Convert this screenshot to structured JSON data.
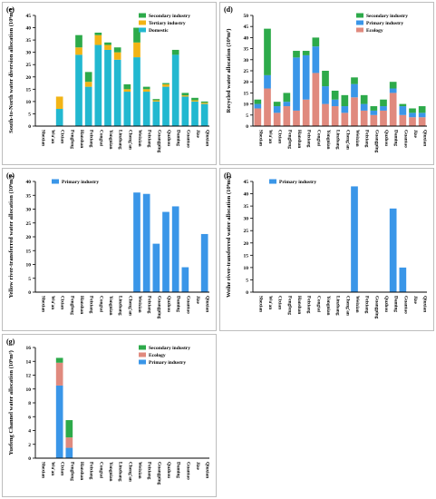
{
  "categories": [
    "Shexian",
    "Wu'an",
    "Cixian",
    "Fengfeng",
    "Hanshan",
    "Feixiang",
    "Congtai",
    "Yongnian",
    "Linzhang",
    "Cheng'an",
    "Weixian",
    "Feixiang",
    "Guangping",
    "Quzhou",
    "Daming",
    "Guantao",
    "Jize",
    "Qiuxian"
  ],
  "colors": {
    "primary": "#3a96e8",
    "secondary": "#2daa4a",
    "tertiary": "#f2b416",
    "domestic": "#22b8d0",
    "ecology": "#e08a7e",
    "frame": "#bdbdbd"
  },
  "chart_data": [
    {
      "panel": "(e)",
      "type": "bar",
      "stacked": true,
      "ylabel": "South-to-North water diversion allocation (10⁸m³)",
      "ylim": [
        0,
        45
      ],
      "yticks": [
        0,
        5,
        10,
        15,
        20,
        25,
        30,
        35,
        40,
        45
      ],
      "legend_position": "top-right",
      "series": [
        {
          "name": "Domestic",
          "color": "#22b8d0",
          "values": [
            0,
            0,
            7,
            0,
            29,
            16,
            33,
            31,
            27,
            14,
            28,
            14,
            10,
            16,
            29,
            12,
            10,
            9
          ]
        },
        {
          "name": "Tertiary industry",
          "color": "#f2b416",
          "values": [
            0,
            0,
            5,
            0,
            3,
            2,
            4,
            2,
            3,
            1,
            6,
            1,
            0.5,
            1,
            0,
            0.5,
            0.5,
            0.5
          ]
        },
        {
          "name": "Secondary industry",
          "color": "#2daa4a",
          "values": [
            0,
            0,
            0,
            0,
            5,
            4,
            1,
            1,
            2,
            2,
            6,
            1,
            0.5,
            0.5,
            2,
            1,
            1,
            0.5
          ]
        }
      ]
    },
    {
      "panel": "(d)",
      "type": "bar",
      "stacked": true,
      "ylabel": "Recycled water allocation (10⁸m³)",
      "ylim": [
        0,
        50
      ],
      "yticks": [
        0,
        5,
        10,
        15,
        20,
        25,
        30,
        35,
        40,
        45,
        50
      ],
      "legend_position": "top-right",
      "series": [
        {
          "name": "Ecology",
          "color": "#e08a7e",
          "values": [
            8,
            17,
            6,
            9,
            7,
            12,
            24,
            10,
            9,
            6,
            13,
            7,
            5,
            7,
            15,
            5,
            4,
            4
          ]
        },
        {
          "name": "Primary industry",
          "color": "#3a96e8",
          "values": [
            2,
            6,
            3,
            2,
            24,
            20,
            12,
            8,
            3,
            3,
            6,
            3,
            2,
            2,
            2,
            4,
            2,
            2
          ]
        },
        {
          "name": "Secondary industry",
          "color": "#2daa4a",
          "values": [
            2,
            21,
            2,
            4,
            3,
            2,
            4,
            7,
            4,
            5,
            3,
            4,
            2,
            3,
            3,
            1,
            2,
            3
          ]
        }
      ]
    },
    {
      "panel": "(e)",
      "type": "bar",
      "ylabel": "Yellow river-transferred water allocation (10⁸m³)",
      "ylim": [
        0,
        40
      ],
      "yticks": [
        0,
        5,
        10,
        15,
        20,
        25,
        30,
        35,
        40
      ],
      "legend_position": "top-left",
      "series": [
        {
          "name": "Primary industry",
          "color": "#3a96e8",
          "values": [
            0,
            0,
            0,
            0,
            0,
            0,
            0,
            0,
            0,
            0,
            36,
            35.5,
            17.5,
            29,
            31,
            9,
            0,
            21
          ]
        }
      ]
    },
    {
      "panel": "(f)",
      "type": "bar",
      "ylabel": "Weihe river-transferred water allocation (10⁸m³)",
      "ylim": [
        0,
        45
      ],
      "yticks": [
        0,
        5,
        10,
        15,
        20,
        25,
        30,
        35,
        40,
        45
      ],
      "legend_position": "top-left",
      "series": [
        {
          "name": "Primary industry",
          "color": "#3a96e8",
          "values": [
            0,
            0,
            0,
            0,
            0,
            0,
            0,
            0,
            0,
            0,
            43,
            0,
            0,
            0,
            34,
            10,
            0,
            0
          ]
        }
      ]
    },
    {
      "panel": "(g)",
      "type": "bar",
      "stacked": true,
      "ylabel": "Yuefeng Channel water allocation (10⁸m³)",
      "ylim": [
        0,
        16
      ],
      "yticks": [
        0,
        2,
        4,
        6,
        8,
        10,
        12,
        14,
        16
      ],
      "legend_position": "top-right",
      "series": [
        {
          "name": "Primary industry",
          "color": "#3a96e8",
          "values": [
            0,
            0,
            10.5,
            1.5,
            0,
            0,
            0,
            0,
            0,
            0,
            0,
            0,
            0,
            0,
            0,
            0,
            0,
            0
          ]
        },
        {
          "name": "Ecology",
          "color": "#e08a7e",
          "values": [
            0,
            0,
            3.3,
            1.5,
            0,
            0,
            0,
            0,
            0,
            0,
            0,
            0,
            0,
            0,
            0,
            0,
            0,
            0
          ]
        },
        {
          "name": "Secondary industry",
          "color": "#2daa4a",
          "values": [
            0,
            0,
            0.7,
            2.5,
            0,
            0,
            0,
            0,
            0,
            0,
            0,
            0,
            0,
            0,
            0,
            0,
            0,
            0
          ]
        }
      ]
    }
  ]
}
